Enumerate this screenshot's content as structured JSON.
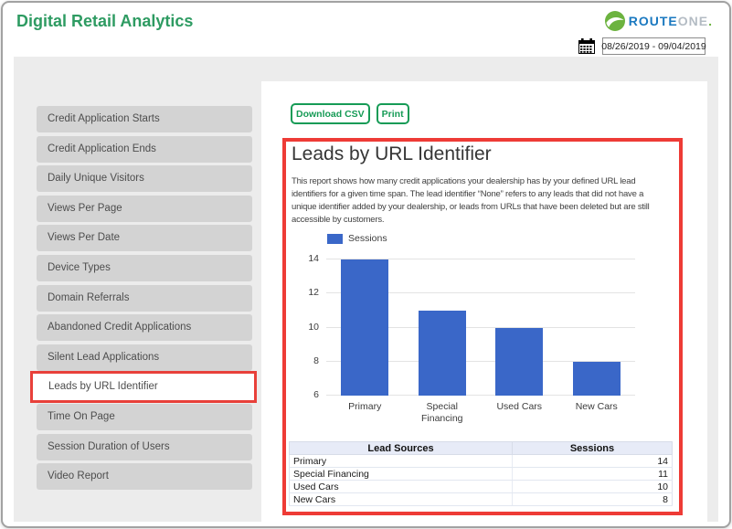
{
  "header": {
    "title": "Digital Retail Analytics"
  },
  "logo": {
    "route": "ROUTE",
    "one": "ONE",
    "dot": "."
  },
  "date_range": {
    "value": "08/26/2019 - 09/04/2019"
  },
  "sidebar": {
    "items": [
      {
        "label": "Credit Application Starts",
        "active": false
      },
      {
        "label": "Credit Application Ends",
        "active": false
      },
      {
        "label": "Daily Unique Visitors",
        "active": false
      },
      {
        "label": "Views Per Page",
        "active": false
      },
      {
        "label": "Views Per Date",
        "active": false
      },
      {
        "label": "Device Types",
        "active": false
      },
      {
        "label": "Domain Referrals",
        "active": false
      },
      {
        "label": "Abandoned Credit Applications",
        "active": false
      },
      {
        "label": "Silent Lead Applications",
        "active": false
      },
      {
        "label": "Leads by URL Identifier",
        "active": true
      },
      {
        "label": "Time On Page",
        "active": false
      },
      {
        "label": "Session Duration of Users",
        "active": false
      },
      {
        "label": "Video Report",
        "active": false
      }
    ]
  },
  "toolbar": {
    "download_csv": "Download CSV",
    "print": "Print"
  },
  "report": {
    "title": "Leads by URL Identifier",
    "description_lines": [
      "This report shows how many credit applications your dealership has by your defined URL lead",
      "identifiers for a given time span. The lead identifier “None” refers to any leads that did not have a",
      "unique identifier added by your dealership, or leads from URLs that have been deleted but are still",
      "accessible by customers."
    ]
  },
  "chart_data": {
    "type": "bar",
    "title": "",
    "legend": "Sessions",
    "legend_position": "top",
    "categories": [
      "Primary",
      "Special Financing",
      "Used Cars",
      "New Cars"
    ],
    "values": [
      14,
      11,
      10,
      8
    ],
    "ylim": [
      6,
      14
    ],
    "yticks": [
      6,
      8,
      10,
      12,
      14
    ],
    "grid": true,
    "bar_color": "#3a67c8"
  },
  "table": {
    "columns": [
      "Lead Sources",
      "Sessions"
    ],
    "rows": [
      [
        "Primary",
        "14"
      ],
      [
        "Special Financing",
        "11"
      ],
      [
        "Used Cars",
        "10"
      ],
      [
        "New Cars",
        "8"
      ]
    ]
  },
  "colors": {
    "accent_green": "#2e9b62",
    "button_green": "#169b56",
    "highlight_red": "#ee3b36",
    "bar_blue": "#3a67c8",
    "logo_blue": "#1b79c0",
    "logo_gray": "#b4bcc4",
    "logo_green": "#6cb33f"
  }
}
